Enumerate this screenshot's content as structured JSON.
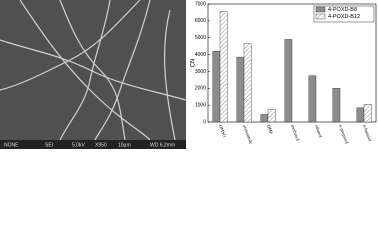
{
  "micrograph": {
    "caption_fields": [
      "NONE",
      "SEI",
      "5.0kV",
      "X950",
      "10μm",
      "WD 6.2mm"
    ]
  },
  "chart_data": {
    "type": "bar",
    "y_label": "CN",
    "categories": [
      "DMSO",
      "acetonitrile",
      "DMF",
      "methanol",
      "ethanol",
      "n-propanol",
      "n-butanol"
    ],
    "series": [
      {
        "name": "4-POXD-B8",
        "color": "#8c8c8c",
        "hatch": false,
        "values": [
          4200,
          3850,
          450,
          4900,
          2750,
          2000,
          850
        ]
      },
      {
        "name": "4-POXD-B12",
        "color": "#ffffff",
        "hatch": true,
        "values": [
          6550,
          4650,
          750,
          null,
          null,
          null,
          1050
        ]
      }
    ],
    "ylim": [
      0,
      7000
    ],
    "yticks": [
      0,
      1000,
      2000,
      3000,
      4000,
      5000,
      6000,
      7000
    ],
    "legend": "top-right"
  }
}
